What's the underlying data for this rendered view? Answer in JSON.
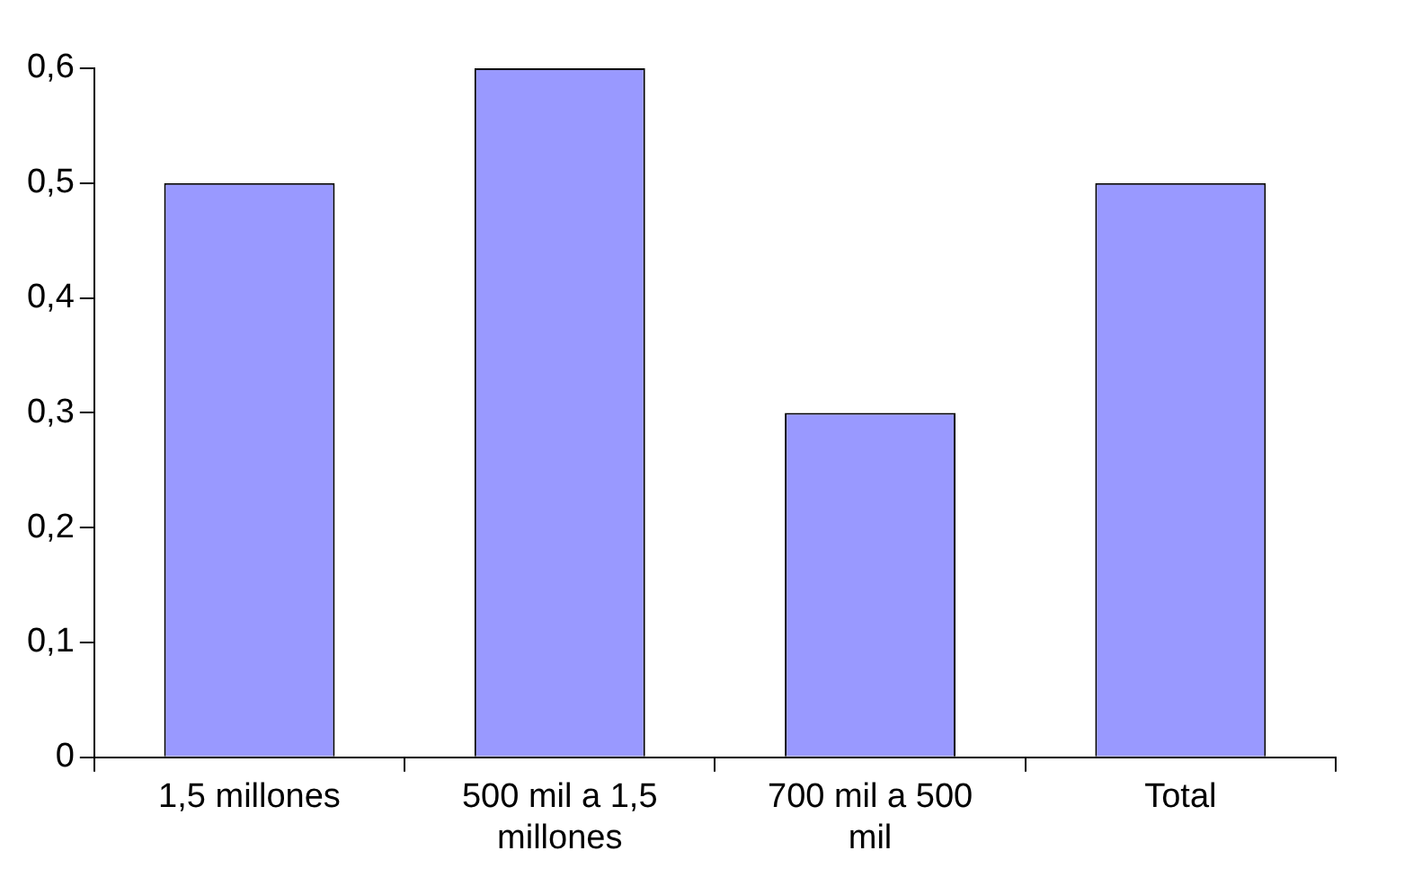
{
  "chart_data": {
    "type": "bar",
    "categories": [
      "1,5 millones",
      "500 mil a 1,5 millones",
      "700 mil a 500 mil",
      "Total"
    ],
    "values": [
      0.5,
      0.6,
      0.3,
      0.5
    ],
    "color": "#9999ff",
    "ylim": [
      0,
      0.6
    ],
    "yticks": [
      {
        "value": 0,
        "label": "0"
      },
      {
        "value": 0.1,
        "label": "0,1"
      },
      {
        "value": 0.2,
        "label": "0,2"
      },
      {
        "value": 0.3,
        "label": "0,3"
      },
      {
        "value": 0.4,
        "label": "0,4"
      },
      {
        "value": 0.5,
        "label": "0,5"
      },
      {
        "value": 0.6,
        "label": "0,6"
      }
    ],
    "grid": false,
    "legend": false
  }
}
